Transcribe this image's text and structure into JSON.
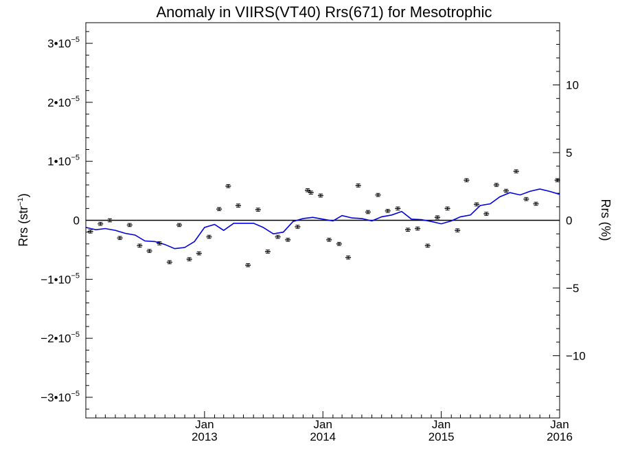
{
  "chart_data": {
    "type": "scatter",
    "title": "Anomaly in VIIRS(VT40) Rrs(671) for Mesotrophic",
    "ylabel_left": {
      "base": "Rrs (str",
      "sup": "−1",
      "close": ")"
    },
    "ylabel_right": "Rrs (%)",
    "x_axis": {
      "range": [
        "2012-01-01",
        "2016-01-01"
      ],
      "ticks": [
        {
          "date": "2013-01-01",
          "month": "Jan",
          "year": "2013"
        },
        {
          "date": "2014-01-01",
          "month": "Jan",
          "year": "2014"
        },
        {
          "date": "2015-01-01",
          "month": "Jan",
          "year": "2015"
        },
        {
          "date": "2016-01-01",
          "month": "Jan",
          "year": "2016"
        }
      ]
    },
    "y_left": {
      "range": [
        -3.35e-05,
        3.35e-05
      ],
      "ticks": [
        {
          "value": 3e-05,
          "coef": "3•10",
          "exp": "−5"
        },
        {
          "value": 2e-05,
          "coef": "2•10",
          "exp": "−5"
        },
        {
          "value": 1e-05,
          "coef": "1•10",
          "exp": "−5"
        },
        {
          "value": 0,
          "coef": "0",
          "exp": ""
        },
        {
          "value": -1e-05,
          "coef": "−1•10",
          "exp": "−5"
        },
        {
          "value": -2e-05,
          "coef": "−2•10",
          "exp": "−5"
        },
        {
          "value": -3e-05,
          "coef": "−3•10",
          "exp": "−5"
        }
      ]
    },
    "y_right": {
      "range": [
        -14.6,
        14.6
      ],
      "ticks": [
        {
          "value": 10,
          "label": "10"
        },
        {
          "value": 5,
          "label": "5"
        },
        {
          "value": 0,
          "label": "0"
        },
        {
          "value": -5,
          "label": "−5"
        },
        {
          "value": -10,
          "label": "−10"
        }
      ]
    },
    "zero_line": true,
    "series": [
      {
        "type": "scatter_errorbars",
        "color": "#000000",
        "error": 1.5e-07,
        "points": [
          [
            "2012-01-15",
            -1.9e-06
          ],
          [
            "2012-02-15",
            -6e-07
          ],
          [
            "2012-03-15",
            0
          ],
          [
            "2012-04-15",
            -3e-06
          ],
          [
            "2012-05-15",
            -8e-07
          ],
          [
            "2012-06-15",
            -4.3e-06
          ],
          [
            "2012-07-15",
            -5.2e-06
          ],
          [
            "2012-08-15",
            -3.9e-06
          ],
          [
            "2012-09-15",
            -7.1e-06
          ],
          [
            "2012-10-15",
            -8e-07
          ],
          [
            "2012-11-15",
            -6.6e-06
          ],
          [
            "2012-12-15",
            -5.6e-06
          ],
          [
            "2013-01-15",
            -2.8e-06
          ],
          [
            "2013-02-15",
            1.9e-06
          ],
          [
            "2013-03-15",
            5.8e-06
          ],
          [
            "2013-04-15",
            2.5e-06
          ],
          [
            "2013-05-15",
            -7.6e-06
          ],
          [
            "2013-06-15",
            1.8e-06
          ],
          [
            "2013-07-15",
            -5.3e-06
          ],
          [
            "2013-08-15",
            -2.8e-06
          ],
          [
            "2013-09-15",
            -3.3e-06
          ],
          [
            "2013-10-15",
            -1.1e-06
          ],
          [
            "2013-11-15",
            5.1e-06
          ],
          [
            "2013-11-25",
            4.7e-06
          ],
          [
            "2013-12-25",
            4.2e-06
          ],
          [
            "2014-01-20",
            -3.3e-06
          ],
          [
            "2014-02-20",
            -4e-06
          ],
          [
            "2014-03-20",
            -6.3e-06
          ],
          [
            "2014-04-20",
            5.9e-06
          ],
          [
            "2014-05-20",
            1.4e-06
          ],
          [
            "2014-06-20",
            4.3e-06
          ],
          [
            "2014-07-20",
            1.6e-06
          ],
          [
            "2014-08-20",
            2e-06
          ],
          [
            "2014-09-20",
            -1.6e-06
          ],
          [
            "2014-10-20",
            -1.4e-06
          ],
          [
            "2014-11-20",
            -4.3e-06
          ],
          [
            "2014-12-20",
            5e-07
          ],
          [
            "2015-01-20",
            2e-06
          ],
          [
            "2015-02-20",
            -1.7e-06
          ],
          [
            "2015-03-20",
            6.8e-06
          ],
          [
            "2015-04-20",
            2.7e-06
          ],
          [
            "2015-05-20",
            1.1e-06
          ],
          [
            "2015-06-20",
            6e-06
          ],
          [
            "2015-07-20",
            5e-06
          ],
          [
            "2015-08-20",
            8.3e-06
          ],
          [
            "2015-09-20",
            3.6e-06
          ],
          [
            "2015-10-20",
            2.8e-06
          ],
          [
            "2015-12-25",
            6.8e-06
          ]
        ]
      },
      {
        "type": "line",
        "color": "#0000dd",
        "points": [
          [
            "2012-01-01",
            -1.2e-06
          ],
          [
            "2012-02-01",
            -1.6e-06
          ],
          [
            "2012-03-01",
            -1.4e-06
          ],
          [
            "2012-04-01",
            -1.7e-06
          ],
          [
            "2012-05-01",
            -2.2e-06
          ],
          [
            "2012-06-01",
            -2.5e-06
          ],
          [
            "2012-07-01",
            -3.5e-06
          ],
          [
            "2012-08-01",
            -3.6e-06
          ],
          [
            "2012-09-01",
            -4.1e-06
          ],
          [
            "2012-10-01",
            -4.8e-06
          ],
          [
            "2012-11-01",
            -4.6e-06
          ],
          [
            "2012-12-01",
            -3.6e-06
          ],
          [
            "2013-01-01",
            -1.2e-06
          ],
          [
            "2013-02-01",
            -7e-07
          ],
          [
            "2013-03-01",
            -1.7e-06
          ],
          [
            "2013-04-01",
            -5e-07
          ],
          [
            "2013-05-01",
            -5e-07
          ],
          [
            "2013-06-01",
            -5e-07
          ],
          [
            "2013-07-01",
            -1.2e-06
          ],
          [
            "2013-08-01",
            -2.3e-06
          ],
          [
            "2013-09-01",
            -2e-06
          ],
          [
            "2013-10-01",
            -2e-07
          ],
          [
            "2013-11-01",
            3e-07
          ],
          [
            "2013-12-01",
            5e-07
          ],
          [
            "2014-01-01",
            2e-07
          ],
          [
            "2014-02-01",
            -1e-07
          ],
          [
            "2014-03-01",
            8e-07
          ],
          [
            "2014-04-01",
            4e-07
          ],
          [
            "2014-05-01",
            3e-07
          ],
          [
            "2014-06-01",
            -1e-07
          ],
          [
            "2014-07-01",
            6e-07
          ],
          [
            "2014-08-01",
            9e-07
          ],
          [
            "2014-09-01",
            1.5e-06
          ],
          [
            "2014-10-01",
            2e-07
          ],
          [
            "2014-11-01",
            1e-07
          ],
          [
            "2014-12-01",
            -2e-07
          ],
          [
            "2015-01-01",
            -6e-07
          ],
          [
            "2015-02-01",
            -1e-07
          ],
          [
            "2015-03-01",
            6e-07
          ],
          [
            "2015-04-01",
            9e-07
          ],
          [
            "2015-05-01",
            2.5e-06
          ],
          [
            "2015-06-01",
            2.8e-06
          ],
          [
            "2015-07-01",
            4e-06
          ],
          [
            "2015-08-01",
            4.7e-06
          ],
          [
            "2015-09-01",
            4.3e-06
          ],
          [
            "2015-10-01",
            4.9e-06
          ],
          [
            "2015-11-01",
            5.3e-06
          ],
          [
            "2015-12-01",
            4.9e-06
          ],
          [
            "2016-01-01",
            4.4e-06
          ]
        ]
      }
    ]
  }
}
